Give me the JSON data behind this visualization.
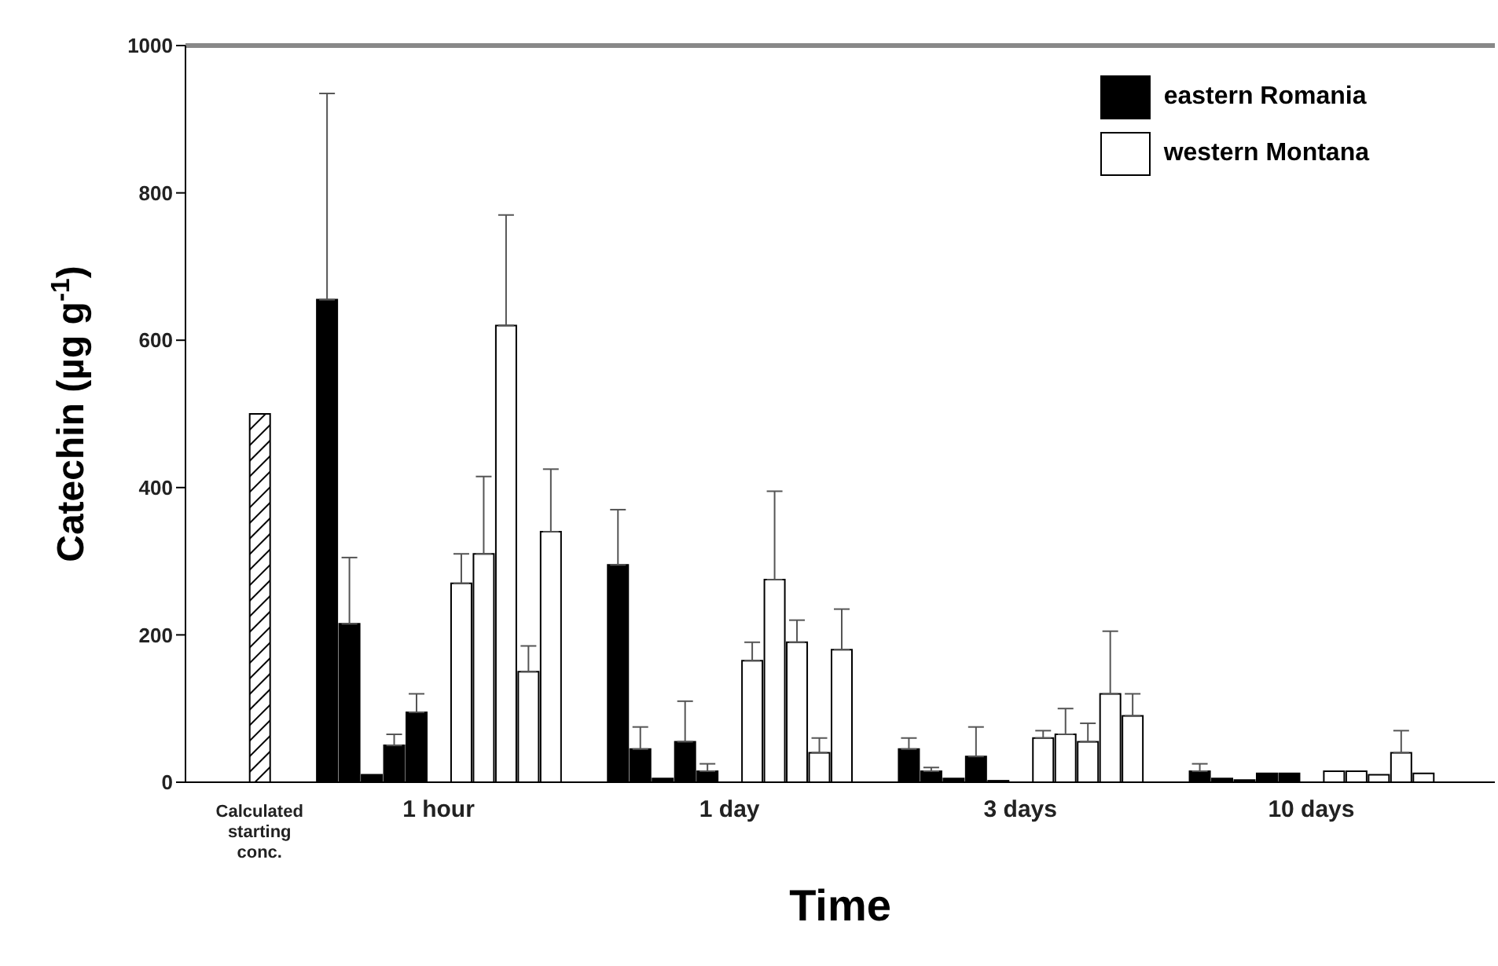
{
  "chart_data": {
    "type": "bar",
    "xlabel": "Time",
    "ylabel": "Catechin (µg g$^{-1}$)",
    "categories": [
      "Calculated starting conc.",
      null,
      null,
      null,
      null,
      null,
      null,
      null,
      "1 hour",
      null,
      null,
      null,
      null,
      null,
      null,
      null,
      null,
      null,
      null,
      null,
      null,
      "1 day",
      null,
      null,
      null,
      null,
      null,
      null,
      null,
      null,
      null,
      null,
      null,
      null,
      "3 days",
      null,
      null,
      null,
      null,
      null,
      null,
      null,
      null,
      null,
      null,
      null,
      null,
      "10 days",
      null,
      null,
      null,
      null,
      null,
      null,
      null
    ],
    "series": [
      {
        "color": "#000000",
        "values": [
          500,
          null,
          null,
          null,
          null,
          null,
          null,
          null,
          null,
          null,
          null,
          null,
          null,
          null,
          null,
          null,
          null,
          null,
          null,
          null,
          null,
          null,
          null,
          null,
          null,
          null,
          null,
          null,
          null,
          null,
          null,
          null,
          null,
          null,
          null,
          null,
          null,
          null,
          null,
          null,
          null,
          null,
          null,
          null,
          null,
          null,
          null,
          null,
          null,
          null,
          null,
          null,
          null,
          null,
          null
        ]
      },
      {
        "name": "eastern Romania",
        "color": "#000000",
        "values": [
          null,
          null,
          null,
          655,
          215,
          10,
          50,
          95,
          null,
          null,
          null,
          null,
          null,
          null,
          null,
          null,
          295,
          45,
          5,
          55,
          15,
          null,
          null,
          null,
          null,
          null,
          null,
          null,
          null,
          45,
          15,
          5,
          35,
          2,
          null,
          null,
          null,
          null,
          null,
          null,
          null,
          null,
          15,
          5,
          3,
          12,
          12,
          null,
          null,
          null,
          null,
          null,
          null,
          null,
          null
        ],
        "errors": [
          null,
          null,
          null,
          [
            655,
            935
          ],
          [
            215,
            305
          ],
          null,
          [
            50,
            65
          ],
          [
            95,
            120
          ],
          null,
          null,
          null,
          null,
          null,
          null,
          null,
          null,
          [
            295,
            370
          ],
          [
            45,
            75
          ],
          null,
          [
            55,
            110
          ],
          [
            15,
            25
          ],
          null,
          null,
          null,
          null,
          null,
          null,
          null,
          null,
          [
            45,
            60
          ],
          [
            15,
            20
          ],
          null,
          [
            35,
            75
          ],
          null,
          null,
          null,
          null,
          null,
          null,
          null,
          null,
          null,
          [
            15,
            25
          ],
          null,
          null,
          null,
          null,
          null,
          null,
          null,
          null,
          null,
          null,
          null,
          null
        ]
      },
      {
        "name": "western Montana",
        "color": "#ffffff",
        "values": [
          null,
          null,
          null,
          null,
          null,
          null,
          null,
          null,
          null,
          270,
          310,
          620,
          150,
          340,
          null,
          null,
          null,
          null,
          null,
          null,
          null,
          null,
          165,
          275,
          190,
          40,
          180,
          null,
          null,
          null,
          null,
          null,
          null,
          null,
          null,
          60,
          65,
          55,
          120,
          90,
          null,
          null,
          null,
          null,
          null,
          null,
          null,
          null,
          15,
          15,
          10,
          40,
          12,
          null,
          null
        ],
        "errors": [
          null,
          null,
          null,
          null,
          null,
          null,
          null,
          null,
          null,
          [
            270,
            310
          ],
          [
            310,
            415
          ],
          [
            620,
            770
          ],
          [
            150,
            185
          ],
          [
            340,
            425
          ],
          null,
          null,
          null,
          null,
          null,
          null,
          null,
          null,
          [
            165,
            190
          ],
          [
            275,
            395
          ],
          [
            190,
            220
          ],
          [
            40,
            60
          ],
          [
            180,
            235
          ],
          null,
          null,
          null,
          null,
          null,
          null,
          null,
          null,
          [
            60,
            70
          ],
          [
            65,
            100
          ],
          [
            55,
            80
          ],
          [
            120,
            205
          ],
          [
            90,
            120
          ],
          null,
          null,
          null,
          null,
          null,
          null,
          null,
          null,
          null,
          null,
          null,
          [
            40,
            70
          ],
          null,
          null,
          null
        ]
      }
    ],
    "ylim": [
      0,
      1000
    ],
    "yticks": [
      0,
      200,
      400,
      600,
      800,
      1000
    ],
    "legend": "top right"
  }
}
